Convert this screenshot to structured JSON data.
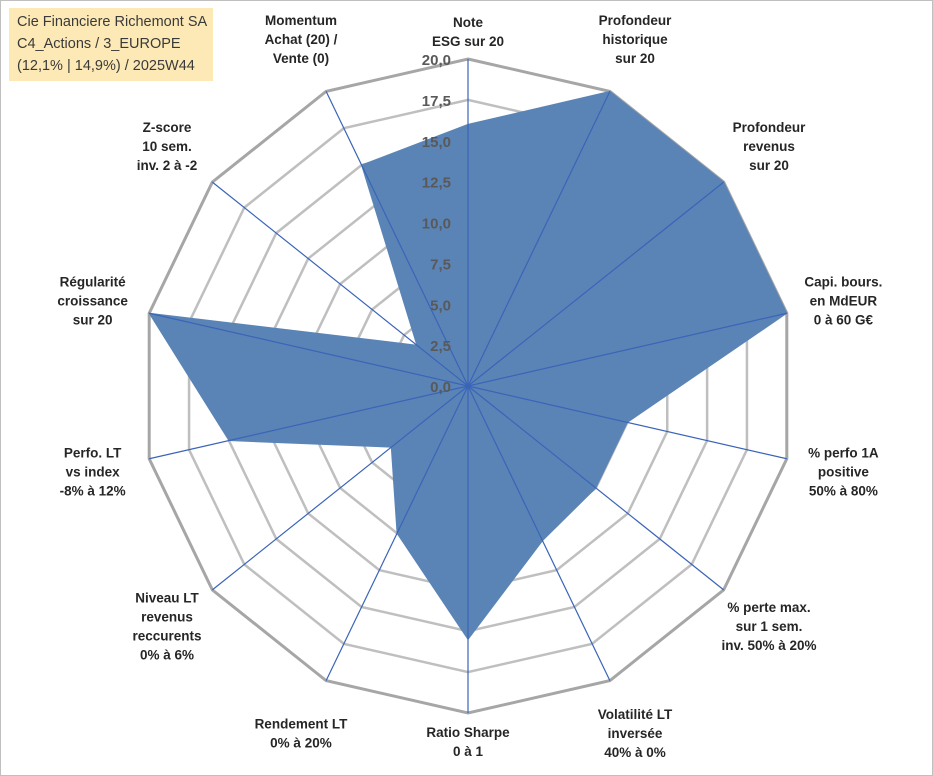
{
  "chart_data": {
    "type": "radar",
    "title_lines": [
      "Cie Financiere Richemont SA",
      "C4_Actions / 3_EUROPE",
      "(12,1% | 14,9%) / 2025W44"
    ],
    "r_min": 0,
    "r_max": 20,
    "r_step": 2.5,
    "tick_labels": [
      "0,0",
      "2,5",
      "5,0",
      "7,5",
      "10,0",
      "12,5",
      "15,0",
      "17,5",
      "20,0"
    ],
    "axes": [
      {
        "label": [
          "Note",
          "ESG sur 20"
        ],
        "value": 16
      },
      {
        "label": [
          "Profondeur",
          "historique",
          "sur 20"
        ],
        "value": 20
      },
      {
        "label": [
          "Profondeur",
          "revenus",
          "sur 20"
        ],
        "value": 20
      },
      {
        "label": [
          "Capi. bours.",
          "en MdEUR",
          "0 à 60 G€"
        ],
        "value": 20
      },
      {
        "label": [
          "% perfo 1A",
          "positive",
          "50% à 80%"
        ],
        "value": 10
      },
      {
        "label": [
          "% perte max.",
          "sur 1 sem.",
          "inv. 50% à 20%"
        ],
        "value": 10
      },
      {
        "label": [
          "Volatilité LT",
          "inversée",
          "40% à 0%"
        ],
        "value": 10.5
      },
      {
        "label": [
          "Ratio Sharpe",
          "0 à 1"
        ],
        "value": 15.5
      },
      {
        "label": [
          "Rendement LT",
          "0% à 20%"
        ],
        "value": 10
      },
      {
        "label": [
          "Niveau LT",
          "revenus",
          "reccurents",
          "0% à 6%"
        ],
        "value": 6
      },
      {
        "label": [
          "Perfo. LT",
          "vs index",
          "-8% à 12%"
        ],
        "value": 15
      },
      {
        "label": [
          "Régularité",
          "croissance",
          "sur 20"
        ],
        "value": 20
      },
      {
        "label": [
          "Z-score",
          "10 sem.",
          "inv. 2 à -2"
        ],
        "value": 4
      },
      {
        "label": [
          "Momentum",
          "Achat (20) /",
          "Vente (0)"
        ],
        "value": 15
      }
    ],
    "colors": {
      "fill": "#5b84b6",
      "spoke": "#3a64b8",
      "grid": "#bfbfbf",
      "outer_ring": "#a6a6a6"
    }
  }
}
